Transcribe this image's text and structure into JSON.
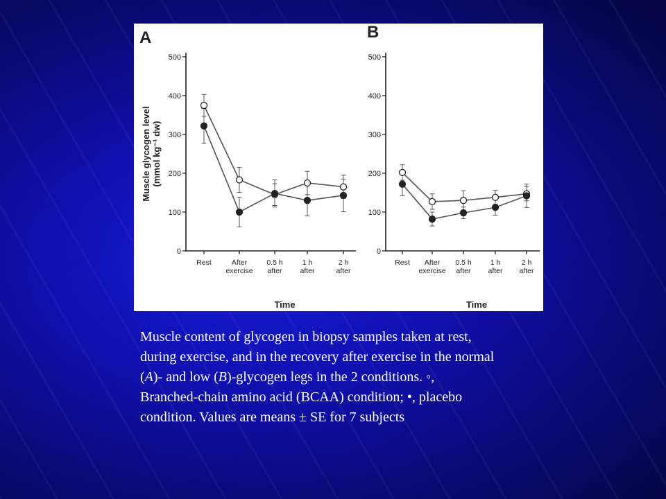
{
  "chart_data": [
    {
      "panel_label": "A",
      "type": "line",
      "categories": [
        "Rest",
        "After exercise",
        "0.5 h after",
        "1 h after",
        "2 h after"
      ],
      "category_lines": [
        [
          "Rest"
        ],
        [
          "After",
          "exercise"
        ],
        [
          "0.5 h",
          "after"
        ],
        [
          "1 h",
          "after"
        ],
        [
          "2 h",
          "after"
        ]
      ],
      "ylabel_lines": [
        "Muscle glycogen level",
        "(mmol kg⁻¹ dw)"
      ],
      "xlabel": "Time",
      "ylim": [
        0,
        500
      ],
      "yticks": [
        0,
        100,
        200,
        300,
        400,
        500
      ],
      "series": [
        {
          "marker": "open",
          "values": [
            375,
            183,
            145,
            175,
            165
          ],
          "errors": [
            28,
            32,
            28,
            30,
            30
          ]
        },
        {
          "marker": "filled",
          "values": [
            322,
            100,
            148,
            130,
            143
          ],
          "errors": [
            45,
            38,
            35,
            40,
            42
          ]
        }
      ]
    },
    {
      "panel_label": "B",
      "type": "line",
      "categories": [
        "Rest",
        "After exercise",
        "0.5 h after",
        "1 h after",
        "2 h after"
      ],
      "category_lines": [
        [
          "Rest"
        ],
        [
          "After",
          "exercise"
        ],
        [
          "0.5 h",
          "after"
        ],
        [
          "1 h",
          "after"
        ],
        [
          "2 h",
          "after"
        ]
      ],
      "xlabel": "Time",
      "ylim": [
        0,
        500
      ],
      "yticks": [
        0,
        100,
        200,
        300,
        400,
        500
      ],
      "series": [
        {
          "marker": "open",
          "values": [
            202,
            127,
            130,
            138,
            147
          ],
          "errors": [
            20,
            20,
            25,
            18,
            18
          ]
        },
        {
          "marker": "filled",
          "values": [
            172,
            82,
            98,
            112,
            142
          ],
          "errors": [
            30,
            18,
            15,
            20,
            30
          ]
        }
      ]
    }
  ],
  "caption": {
    "line1": "Muscle content of glycogen in biopsy samples taken at rest,",
    "line2": "during exercise, and in the recovery after exercise in the normal",
    "line3_a_open": "(",
    "line3_a_italic": "A",
    "line3_a_mid": ")- and low (",
    "line3_b_italic": "B",
    "line3_b_end": ")-glycogen legs in the 2 conditions. ◦,",
    "line4": "Branched-chain amino acid (BCAA) condition; •, placebo",
    "line5": "condition. Values are means ± SE for 7 subjects"
  },
  "colors": {
    "plot_ink": "#222222",
    "line_color": "#555555",
    "figure_background": "#ffffff",
    "caption_text": "#ffffff"
  }
}
